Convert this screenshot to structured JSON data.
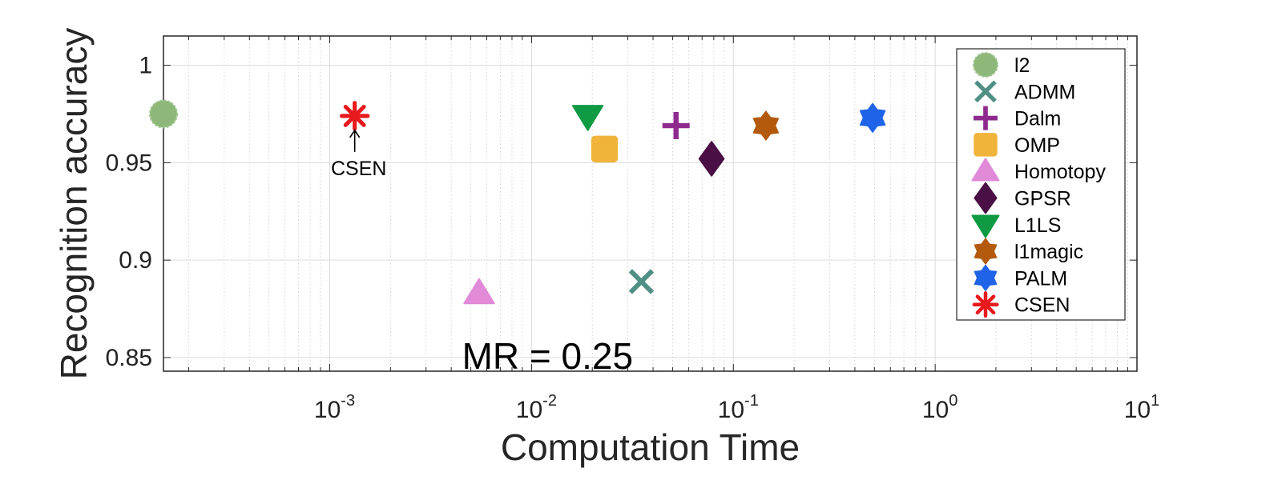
{
  "chart_data": {
    "type": "scatter",
    "xlabel": "Computation  Time",
    "ylabel": "Recognition accuracy",
    "xscale": "log",
    "xlim": [
      0.00015,
      10
    ],
    "ylim": [
      0.843,
      1.015
    ],
    "x_ticks": [
      {
        "base": "10",
        "exp": "-3",
        "value": 0.001
      },
      {
        "base": "10",
        "exp": "-2",
        "value": 0.01
      },
      {
        "base": "10",
        "exp": "-1",
        "value": 0.1
      },
      {
        "base": "10",
        "exp": "0",
        "value": 1
      },
      {
        "base": "10",
        "exp": "1",
        "value": 10
      }
    ],
    "y_ticks": [
      {
        "label": "0.85",
        "value": 0.85
      },
      {
        "label": "0.9",
        "value": 0.9
      },
      {
        "label": "0.95",
        "value": 0.95
      },
      {
        "label": "1",
        "value": 1.0
      }
    ],
    "grid": true,
    "minor_grid": true,
    "legend_position": "top-right",
    "annotation": "MR = 0.25",
    "callout": {
      "text": "CSEN",
      "target": "CSEN"
    },
    "series": [
      {
        "name": "l2",
        "x": 0.00015,
        "y": 0.975,
        "marker": "dashed-circle",
        "color": "#8db87a"
      },
      {
        "name": "ADMM",
        "x": 0.035,
        "y": 0.889,
        "marker": "x",
        "color": "#4f8f84"
      },
      {
        "name": "Dalm",
        "x": 0.052,
        "y": 0.969,
        "marker": "plus",
        "color": "#8e2a8e"
      },
      {
        "name": "OMP",
        "x": 0.023,
        "y": 0.957,
        "marker": "square",
        "color": "#f0b43a"
      },
      {
        "name": "Homotopy",
        "x": 0.0055,
        "y": 0.883,
        "marker": "triangle-up",
        "color": "#e08ad8"
      },
      {
        "name": "GPSR",
        "x": 0.078,
        "y": 0.952,
        "marker": "diamond",
        "color": "#4a0f45"
      },
      {
        "name": "L1LS",
        "x": 0.019,
        "y": 0.974,
        "marker": "triangle-down",
        "color": "#0f9a44"
      },
      {
        "name": "l1magic",
        "x": 0.145,
        "y": 0.969,
        "marker": "hexagram",
        "color": "#b35a0e"
      },
      {
        "name": "PALM",
        "x": 0.49,
        "y": 0.973,
        "marker": "hexagram",
        "color": "#1f63e8"
      },
      {
        "name": "CSEN",
        "x": 0.00133,
        "y": 0.974,
        "marker": "asterisk",
        "color": "#e8191c"
      }
    ]
  }
}
